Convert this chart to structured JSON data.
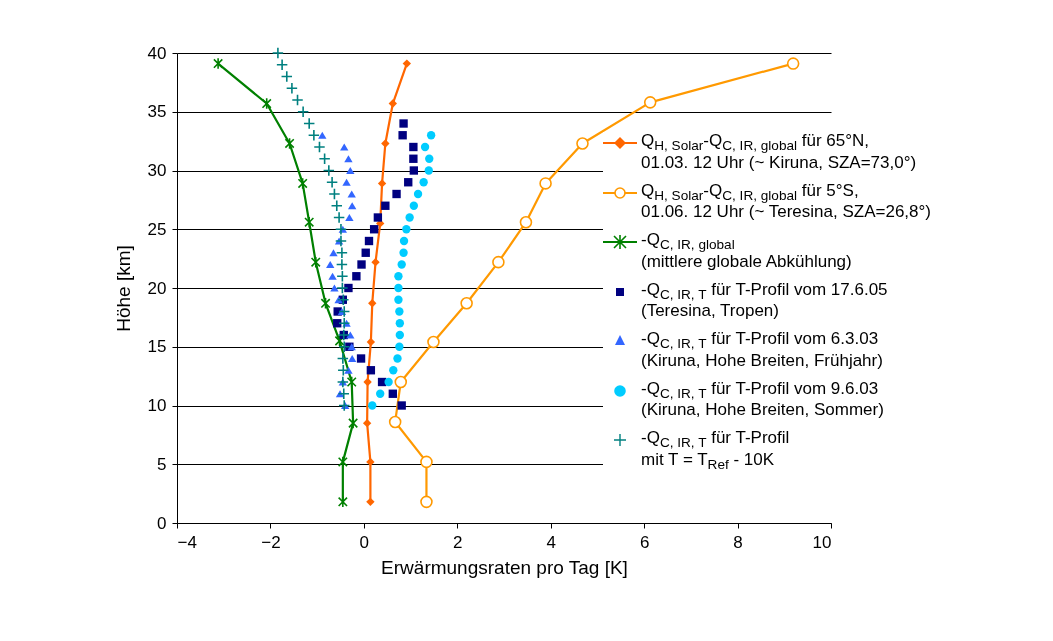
{
  "chart_data": {
    "type": "line",
    "xlabel": "Erwärmungsraten pro Tag [K]",
    "ylabel": "Höhe [km]",
    "xlim": [
      -4,
      10
    ],
    "xticks": [
      -4,
      -2,
      0,
      2,
      4,
      6,
      8,
      10
    ],
    "ylim": [
      0,
      40
    ],
    "yticks": [
      0,
      5,
      10,
      15,
      20,
      25,
      30,
      35,
      40
    ],
    "grid": "y",
    "legend": "right",
    "series": [
      {
        "name": "Q$_{H, Solar}$-Q$_{C, IR, global}$ für 65°N,\n01.03. 12 Uhr (~ Kiruna, SZA=73,0°)",
        "marker": "diamond",
        "color": "#ff6600",
        "x": [
          0.92,
          0.62,
          0.46,
          0.39,
          0.35,
          0.25,
          0.18,
          0.15,
          0.08,
          0.07,
          0.14,
          0.14
        ],
        "values": [
          39.1,
          35.7,
          32.3,
          28.9,
          25.5,
          22.2,
          18.7,
          15.4,
          12.0,
          8.5,
          5.2,
          1.8
        ]
      },
      {
        "name": "Q$_{H, Solar}$-Q$_{C, IR, global}$ für 5°S,\n01.06. 12 Uhr (~ Teresina, SZA=26,8°)",
        "marker": "circle",
        "color": "#ff9900",
        "x": [
          9.19,
          6.13,
          4.68,
          3.89,
          3.47,
          2.88,
          2.2,
          1.49,
          0.79,
          0.67,
          1.34,
          1.34
        ],
        "values": [
          39.1,
          35.8,
          32.3,
          28.9,
          25.6,
          22.2,
          18.7,
          15.4,
          12.0,
          8.6,
          5.2,
          1.8
        ]
      },
      {
        "name": "-Q$_{C, IR, global}$\n(mittlere globale Abkühlung)",
        "marker": "cross",
        "color": "#008000",
        "x": [
          -3.12,
          -2.08,
          -1.59,
          -1.31,
          -1.17,
          -1.03,
          -0.82,
          -0.52,
          -0.26,
          -0.23,
          -0.45,
          -0.45
        ],
        "values": [
          39.1,
          35.7,
          32.3,
          28.9,
          25.6,
          22.2,
          18.7,
          15.5,
          12.0,
          8.5,
          5.2,
          1.8
        ]
      },
      {
        "name": "-Q$_{C, IR, T}$ für T-Profil vom 17.6.05\n (Teresina, Tropen)",
        "type": "scatter",
        "marker": "square",
        "color": "#000080",
        "x": [
          0.85,
          0.83,
          1.06,
          1.06,
          1.07,
          0.95,
          0.7,
          0.46,
          0.3,
          0.22,
          0.11,
          0.04,
          -0.05,
          -0.16,
          -0.33,
          -0.45,
          -0.56,
          -0.57,
          -0.43,
          -0.31,
          -0.06,
          0.15,
          0.39,
          0.62,
          0.81
        ],
        "values": [
          34,
          33,
          32,
          31,
          30,
          29,
          28,
          27,
          26,
          25,
          24,
          23,
          22,
          21,
          20,
          19,
          18,
          17,
          16,
          15,
          14,
          13,
          12,
          11,
          10
        ]
      },
      {
        "name": "-Q$_{C, IR, T}$ für T-Profil vom 6.3.03\n(Kiruna, Hohe Breiten, Frühjahr)",
        "type": "scatter",
        "marker": "triangle",
        "color": "#3366ff",
        "x": [
          -0.89,
          -0.42,
          -0.33,
          -0.29,
          -0.37,
          -0.26,
          -0.25,
          -0.31,
          -0.45,
          -0.53,
          -0.65,
          -0.72,
          -0.67,
          -0.63,
          -0.54,
          -0.47,
          -0.37,
          -0.29,
          -0.26,
          -0.25,
          -0.33,
          -0.45,
          -0.51,
          -0.4
        ],
        "values": [
          33,
          32,
          31,
          30,
          29,
          28,
          27,
          26,
          25,
          24,
          23,
          22,
          21,
          20,
          19,
          18,
          17,
          16,
          15,
          14,
          13,
          12,
          11,
          10
        ]
      },
      {
        "name": "-Q$_{C, IR, T}$ für T-Profil vom 9.6.03\n(Kiruna, Hohe Breiten, Sommer)",
        "type": "scatter",
        "marker": "circle",
        "color": "#00ccff",
        "x": [
          1.44,
          1.31,
          1.4,
          1.39,
          1.28,
          1.16,
          1.07,
          0.98,
          0.91,
          0.86,
          0.85,
          0.81,
          0.74,
          0.74,
          0.74,
          0.76,
          0.77,
          0.77,
          0.76,
          0.72,
          0.63,
          0.53,
          0.35,
          0.18
        ],
        "values": [
          33,
          32,
          31,
          30,
          29,
          28,
          27,
          26,
          25,
          24,
          23,
          22,
          21,
          20,
          19,
          18,
          17,
          16,
          15,
          14,
          13,
          12,
          11,
          10
        ]
      },
      {
        "name": "-Q$_{C, IR, T}$ für T-Profil\nmit T = T$_{Ref}$ - 10K",
        "type": "scatter",
        "marker": "cross",
        "color": "#008080",
        "x": [
          -1.84,
          -1.75,
          -1.65,
          -1.54,
          -1.42,
          -1.3,
          -1.17,
          -1.07,
          -0.95,
          -0.84,
          -0.75,
          -0.68,
          -0.63,
          -0.58,
          -0.53,
          -0.49,
          -0.49,
          -0.47,
          -0.47,
          -0.46,
          -0.46,
          -0.44,
          -0.42,
          -0.42,
          -0.43,
          -0.42,
          -0.45,
          -0.44,
          -0.45,
          -0.43,
          -0.42
        ],
        "values": [
          40,
          39,
          38,
          37,
          36,
          35,
          34,
          33,
          32,
          31,
          30,
          29,
          28,
          27,
          26,
          25,
          24,
          23,
          22,
          21,
          20,
          19,
          18,
          17,
          16,
          15,
          14,
          13,
          12,
          11,
          10
        ]
      }
    ]
  }
}
